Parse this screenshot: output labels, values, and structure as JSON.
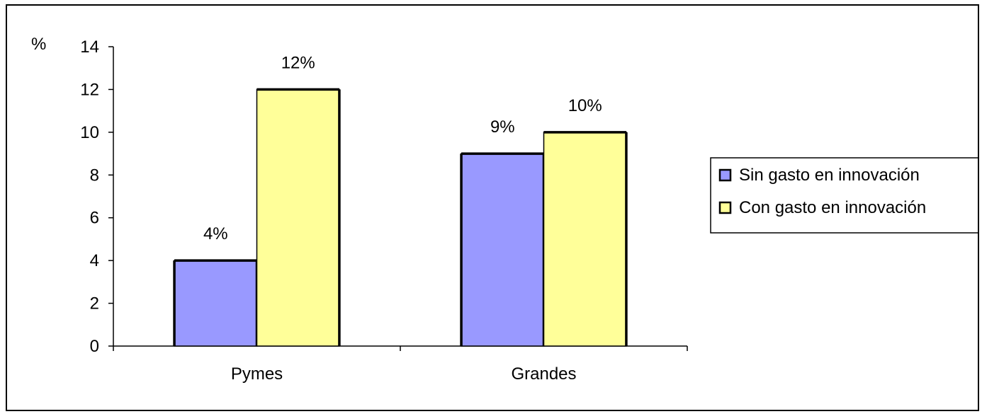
{
  "chart_data": {
    "type": "bar",
    "title": "",
    "xlabel": "",
    "ylabel": "%",
    "ylim": [
      0,
      14
    ],
    "yticks": [
      0,
      2,
      4,
      6,
      8,
      10,
      12,
      14
    ],
    "categories": [
      "Pymes",
      "Grandes"
    ],
    "series": [
      {
        "name": "Sin gasto en innovación",
        "values": [
          4,
          9
        ],
        "data_labels": [
          "4%",
          "9%"
        ],
        "color": "#9999ff"
      },
      {
        "name": "Con gasto en innovación",
        "values": [
          12,
          10
        ],
        "data_labels": [
          "12%",
          "10%"
        ],
        "color": "#ffff99"
      }
    ],
    "grid": false,
    "legend_position": "right"
  }
}
